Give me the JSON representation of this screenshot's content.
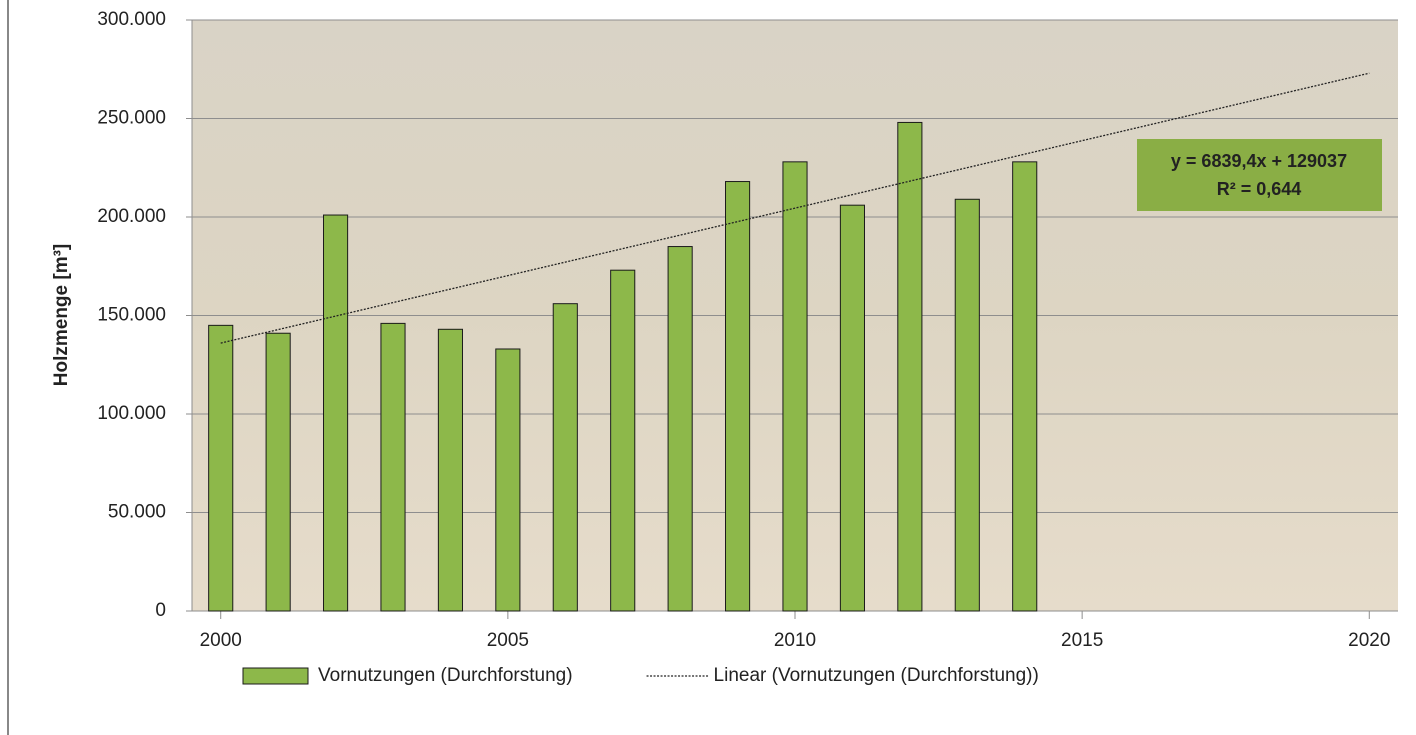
{
  "chart_data": {
    "type": "bar",
    "y_label": "Holzmenge [m³]",
    "xlim": [
      1999.5,
      2020.5
    ],
    "xticks": [
      2000,
      2005,
      2010,
      2015,
      2020
    ],
    "ylim": [
      0,
      300000
    ],
    "yticks": [
      0,
      {
        "value": 50000,
        "label": "50.000"
      },
      {
        "value": 100000,
        "label": "100.000"
      },
      {
        "value": 150000,
        "label": "150.000"
      },
      {
        "value": 200000,
        "label": "200.000"
      },
      {
        "value": 250000,
        "label": "250.000"
      },
      {
        "value": 300000,
        "label": "300.000"
      }
    ],
    "grid": true,
    "legend": "bottom",
    "series": [
      {
        "name": "Vornutzungen (Durchforstung)",
        "type": "bar",
        "color": "#8db84a",
        "x": [
          2000,
          2001,
          2002,
          2003,
          2004,
          2005,
          2006,
          2007,
          2008,
          2009,
          2010,
          2011,
          2012,
          2013,
          2014
        ],
        "values": [
          145000,
          141000,
          201000,
          146000,
          143000,
          133000,
          156000,
          173000,
          185000,
          218000,
          228000,
          206000,
          248000,
          209000,
          228000
        ]
      },
      {
        "name": "Linear (Vornutzungen (Durchforstung))",
        "type": "line",
        "color": "#222222",
        "x": [
          2000,
          2020
        ],
        "values": [
          136000,
          273000
        ]
      }
    ],
    "annotation": [
      "y = 6839,4x + 129037",
      "R² = 0,644"
    ]
  }
}
